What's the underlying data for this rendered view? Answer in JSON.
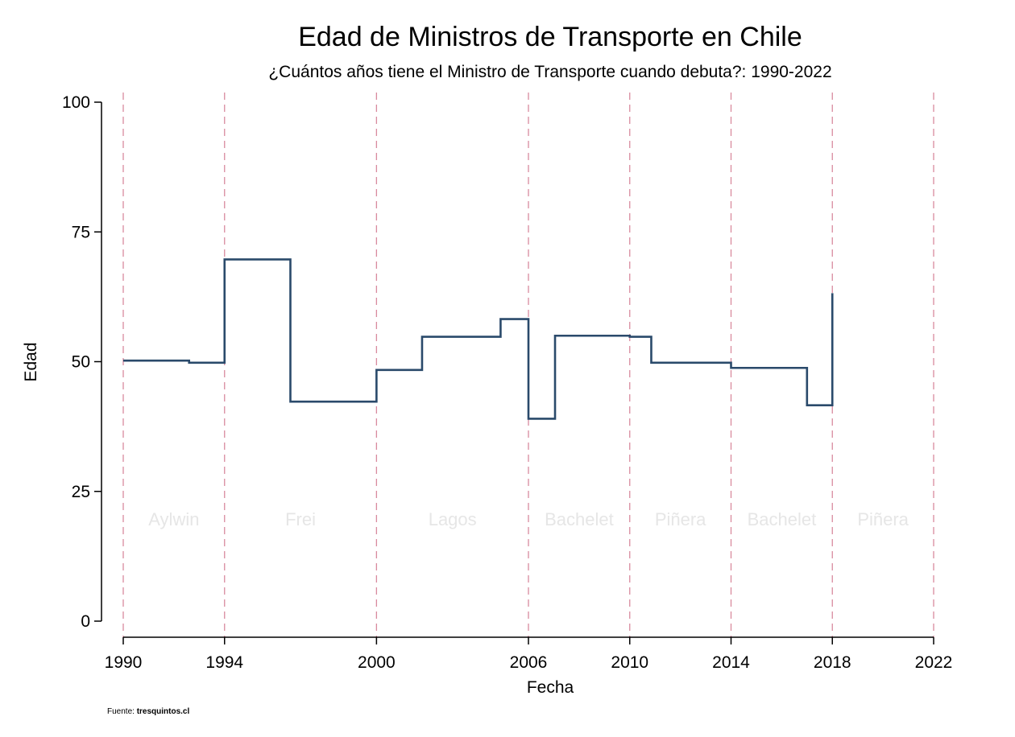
{
  "chart_data": {
    "type": "line",
    "step": true,
    "title": "Edad de Ministros de Transporte en Chile",
    "subtitle": "¿Cuántos años tiene el Ministro de Transporte cuando debuta?: 1990-2022",
    "xlabel": "Fecha",
    "ylabel": "Edad",
    "xlim": [
      1990,
      2022
    ],
    "ylim": [
      0,
      100
    ],
    "x_ticks": [
      1990,
      1994,
      2000,
      2006,
      2010,
      2014,
      2018,
      2022
    ],
    "y_ticks": [
      0,
      25,
      50,
      75,
      100
    ],
    "grid": false,
    "line_color": "#2a4a6b",
    "divider_color": "#d98a9e",
    "period_label_color": "#e6e6e6",
    "dividers": [
      1990,
      1994,
      2000,
      2006,
      2010,
      2014,
      2018,
      2022
    ],
    "periods": [
      {
        "label": "Aylwin",
        "from": 1990,
        "to": 1994
      },
      {
        "label": "Frei",
        "from": 1994,
        "to": 2000
      },
      {
        "label": "Lagos",
        "from": 2000,
        "to": 2006
      },
      {
        "label": "Bachelet",
        "from": 2006,
        "to": 2010
      },
      {
        "label": "Piñera",
        "from": 2010,
        "to": 2014
      },
      {
        "label": "Bachelet",
        "from": 2014,
        "to": 2018
      },
      {
        "label": "Piñera",
        "from": 2018,
        "to": 2022
      }
    ],
    "series": [
      {
        "x": [
          1990,
          1992.6,
          1994,
          1996.6,
          2000,
          2001.8,
          2004.9,
          2006,
          2007.05,
          2010,
          2010.85,
          2014,
          2017.0,
          2018
        ],
        "y": [
          50.2,
          49.8,
          69.7,
          42.3,
          48.4,
          54.8,
          58.2,
          39.0,
          55.0,
          54.8,
          49.8,
          48.8,
          41.6,
          63.2
        ]
      }
    ]
  },
  "source": {
    "label": "Fuente: ",
    "value": "tresquintos.cl"
  }
}
